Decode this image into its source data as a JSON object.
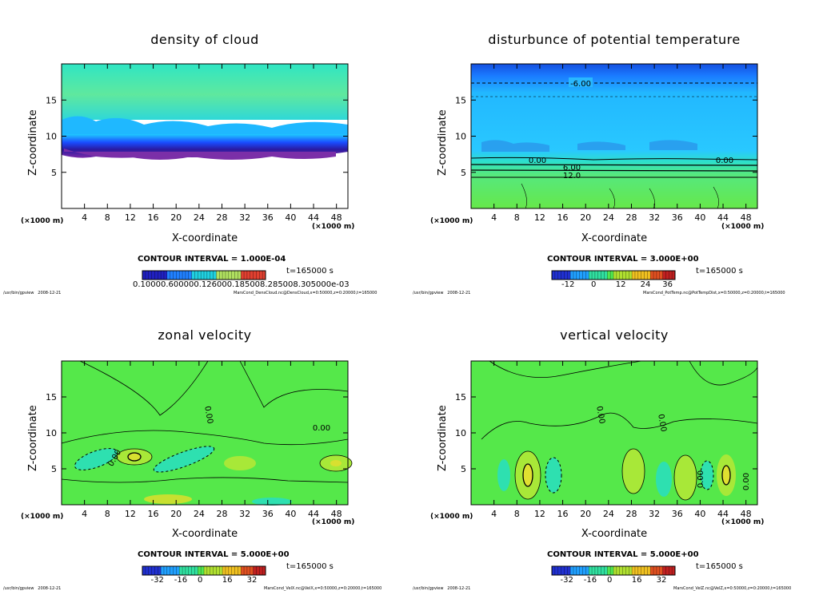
{
  "common": {
    "xlabel": "X-coordinate",
    "ylabel": "Z-coordinate",
    "x_unit_left": "(×1000 m)",
    "x_unit_right": "(×1000 m)",
    "time": "t=165000  s",
    "program": "/usr/bin/gpview",
    "date": "2008-12-21",
    "x_ticks": [
      4,
      8,
      12,
      16,
      20,
      24,
      28,
      32,
      36,
      40,
      44,
      48
    ],
    "y_ticks": [
      5,
      10,
      15
    ],
    "xlim": [
      0,
      50
    ],
    "ylim": [
      0,
      20
    ]
  },
  "panels": [
    {
      "title": "density of cloud",
      "contour_interval": "CONTOUR INTERVAL = 1.000E-04",
      "colorbar_labels": [
        "0.10000.600000.126000.185008.285008.305000e-03"
      ],
      "source": "MarsCond_DensCloud.nc@DensCloud,x=0:50000,z=0:20000,t=165000",
      "contour_labels": []
    },
    {
      "title": "disturbunce of potential temperature",
      "contour_interval": "CONTOUR INTERVAL = 3.000E+00",
      "colorbar_labels": [
        "-12",
        "0",
        "12",
        "24",
        "36"
      ],
      "source": "MarsCond_PotTemp.nc@PotTempDist,x=0:50000,z=0:20000,t=165000",
      "contour_labels": [
        "-6.00",
        "0.00",
        "0.00",
        "6.00",
        "12.0"
      ]
    },
    {
      "title": "zonal velocity",
      "contour_interval": "CONTOUR INTERVAL = 5.000E+00",
      "colorbar_labels": [
        "-32",
        "-16",
        "0",
        "16",
        "32"
      ],
      "source": "MarsCond_VelX.nc@VelX,x=0:50000,z=0:20000,t=165000",
      "contour_labels": [
        "0.00",
        "0.00",
        "0.00"
      ]
    },
    {
      "title": "vertical velocity",
      "contour_interval": "CONTOUR INTERVAL = 5.000E+00",
      "colorbar_labels": [
        "-32",
        "-16",
        "0",
        "16",
        "32"
      ],
      "source": "MarsCond_VelZ.nc@VelZ,x=0:50000,z=0:20000,t=165000",
      "contour_labels": [
        "0.00",
        "0.00",
        "0.00",
        "0.00"
      ]
    }
  ],
  "chart_data": [
    {
      "type": "heatmap",
      "title": "density of cloud",
      "xlabel": "X-coordinate (×1000 m)",
      "ylabel": "Z-coordinate",
      "xlim": [
        0,
        50
      ],
      "ylim": [
        0,
        20
      ],
      "contour_interval": 0.0001,
      "colorbar_range": [
        0.0001,
        0.0003
      ],
      "time": "t=165000 s",
      "features": [
        "cloud layer between z≈7 and z≈11",
        "no cloud below z≈7"
      ]
    },
    {
      "type": "heatmap",
      "title": "disturbunce of potential temperature",
      "xlabel": "X-coordinate (×1000 m)",
      "ylabel": "Z-coordinate",
      "xlim": [
        0,
        50
      ],
      "ylim": [
        0,
        20
      ],
      "contour_interval": 3.0,
      "colorbar_range": [
        -12,
        36
      ],
      "contour_levels_labeled": [
        -6.0,
        0.0,
        0.0,
        6.0,
        12.0
      ],
      "time": "t=165000 s"
    },
    {
      "type": "heatmap",
      "title": "zonal velocity",
      "xlabel": "X-coordinate (×1000 m)",
      "ylabel": "Z-coordinate",
      "xlim": [
        0,
        50
      ],
      "ylim": [
        0,
        20
      ],
      "contour_interval": 5.0,
      "colorbar_range": [
        -32,
        32
      ],
      "contour_levels_labeled": [
        0.0,
        0.0,
        0.0
      ],
      "time": "t=165000 s"
    },
    {
      "type": "heatmap",
      "title": "vertical velocity",
      "xlabel": "X-coordinate (×1000 m)",
      "ylabel": "Z-coordinate",
      "xlim": [
        0,
        50
      ],
      "ylim": [
        0,
        20
      ],
      "contour_interval": 5.0,
      "colorbar_range": [
        -32,
        32
      ],
      "contour_levels_labeled": [
        0.0,
        0.0,
        0.0,
        0.0
      ],
      "time": "t=165000 s"
    }
  ]
}
